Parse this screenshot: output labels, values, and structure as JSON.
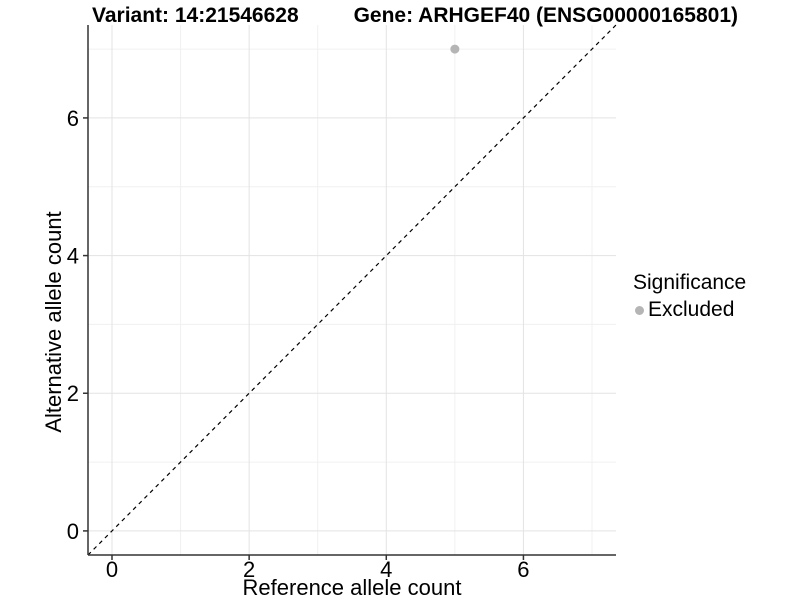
{
  "chart_data": {
    "type": "scatter",
    "title_left": "Variant: 14:21546628",
    "title_right": "Gene: ARHGEF40 (ENSG00000165801)",
    "xlabel": "Reference allele count",
    "ylabel": "Alternative allele count",
    "xlim": [
      -0.35,
      7.35
    ],
    "ylim": [
      -0.35,
      7.35
    ],
    "x_ticks": [
      0,
      2,
      4,
      6
    ],
    "y_ticks": [
      0,
      2,
      4,
      6
    ],
    "x_minor_gridlines": [
      1,
      3,
      5,
      7
    ],
    "y_minor_gridlines": [
      1,
      3,
      5,
      7
    ],
    "grid": "on",
    "points": [
      {
        "x": 5,
        "y": 7,
        "series": "Excluded"
      }
    ],
    "identity_line": {
      "type": "y=x",
      "style": "dashed",
      "from": [
        -0.35,
        -0.35
      ],
      "to": [
        7.35,
        7.35
      ]
    },
    "legend": {
      "position": "right",
      "title": "Significance",
      "items": [
        {
          "label": "Excluded",
          "color": "#b5b5b5",
          "marker": "dot"
        }
      ]
    },
    "colors": {
      "background": "#ffffff",
      "point": "#b5b5b5",
      "grid_major": "#e3e3e3",
      "grid_minor": "#f0f0f0",
      "axis_line": "#333333",
      "tick_text": "#000000",
      "identity_line": "#000000"
    }
  }
}
